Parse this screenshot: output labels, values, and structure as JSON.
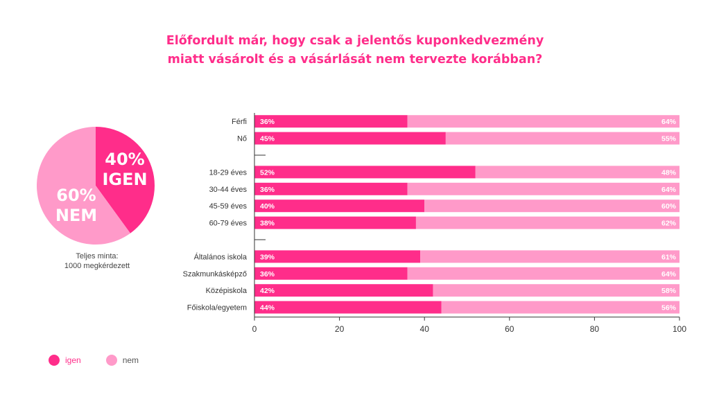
{
  "title": {
    "line1": "Előfordult már, hogy csak a jelentős kuponkedvezmény",
    "line2": "miatt vásárolt és a vásárlását nem tervezte korábban?"
  },
  "colors": {
    "igen": "#ff2d8a",
    "nem": "#ff9ac9",
    "text": "#333333",
    "title": "#ff2d8a"
  },
  "pie": {
    "slices": [
      {
        "name": "igen",
        "value": 40,
        "percent_label": "40%",
        "label": "IGEN"
      },
      {
        "name": "nem",
        "value": 60,
        "percent_label": "60%",
        "label": "NEM"
      }
    ]
  },
  "sample_note": {
    "line1": "Teljes minta:",
    "line2": "1000 megkérdezett"
  },
  "legend": {
    "igen": "igen",
    "nem": "nem"
  },
  "chart_data": {
    "type": "bar",
    "orientation": "horizontal",
    "stacked": true,
    "title": "Előfordult már, hogy csak a jelentős kuponkedvezmény miatt vásárolt és a vásárlását nem tervezte korábban?",
    "categories": [
      "Férfi",
      "Nő",
      "",
      "18-29 éves",
      "30-44 éves",
      "45-59 éves",
      "60-79 éves",
      "",
      "Általános iskola",
      "Szakmunkásképző",
      "Középiskola",
      "Főiskola/egyetem"
    ],
    "series": [
      {
        "name": "igen",
        "values": [
          36,
          45,
          null,
          52,
          36,
          40,
          38,
          null,
          39,
          36,
          42,
          44
        ],
        "labels": [
          "36%",
          "45%",
          "",
          "52%",
          "36%",
          "40%",
          "38%",
          "",
          "39%",
          "36%",
          "42%",
          "44%"
        ]
      },
      {
        "name": "nem",
        "values": [
          64,
          55,
          null,
          48,
          64,
          60,
          62,
          null,
          61,
          64,
          58,
          56
        ],
        "labels": [
          "64%",
          "55%",
          "",
          "48%",
          "64%",
          "60%",
          "62%",
          "",
          "61%",
          "64%",
          "58%",
          "56%"
        ]
      }
    ],
    "xlim": [
      0,
      100
    ],
    "xticks": [
      0,
      20,
      40,
      60,
      80,
      100
    ],
    "legend_position": "bottom-left",
    "grid": false
  }
}
